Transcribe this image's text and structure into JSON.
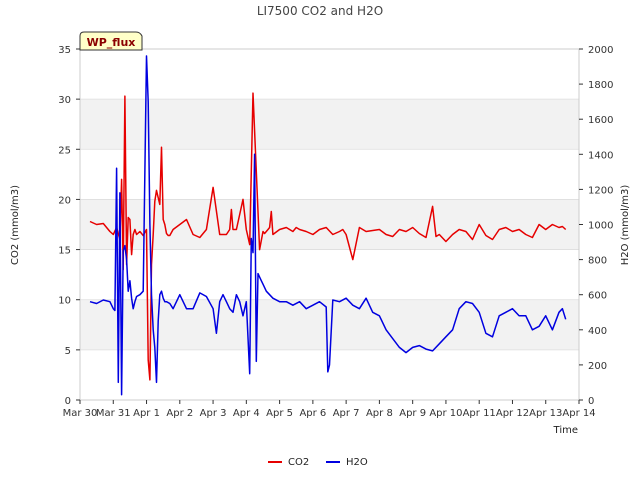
{
  "chart_data": {
    "type": "line",
    "title": "LI7500 CO2 and H2O",
    "xlabel": "Time",
    "ylabel": "CO2 (mmol/m3)",
    "y2label": "H2O (mmol/m3)",
    "site_tag": "WP_flux",
    "xlim": [
      0,
      15
    ],
    "ylim": [
      0,
      35
    ],
    "y2lim": [
      0,
      2000
    ],
    "x_ticks": [
      0,
      1,
      2,
      3,
      4,
      5,
      6,
      7,
      8,
      9,
      10,
      11,
      12,
      13,
      14,
      15
    ],
    "x_tick_labels": [
      "Mar 30",
      "Mar 31",
      "Apr 1",
      "Apr 2",
      "Apr 3",
      "Apr 4",
      "Apr 5",
      "Apr 6",
      "Apr 7",
      "Apr 8",
      "Apr 9",
      "Apr 10",
      "Apr 11",
      "Apr 12",
      "Apr 13",
      "Apr 14"
    ],
    "y_ticks": [
      0,
      5,
      10,
      15,
      20,
      25,
      30,
      35
    ],
    "y2_ticks": [
      0,
      200,
      400,
      600,
      800,
      1000,
      1200,
      1400,
      1600,
      1800,
      2000
    ],
    "bands": [
      [
        5,
        10
      ],
      [
        15,
        20
      ],
      [
        25,
        30
      ]
    ],
    "legend": [
      "CO2",
      "H2O"
    ],
    "colors": {
      "CO2": "#e60000",
      "H2O": "#0000e0",
      "band": "#f2f2f2",
      "grid": "#dddddd"
    },
    "series": [
      {
        "name": "CO2",
        "axis": "left",
        "x": [
          0.3,
          0.5,
          0.7,
          0.9,
          1.0,
          1.1,
          1.2,
          1.25,
          1.3,
          1.35,
          1.4,
          1.45,
          1.5,
          1.55,
          1.6,
          1.65,
          1.7,
          1.8,
          1.9,
          2.0,
          2.05,
          2.1,
          2.15,
          2.2,
          2.25,
          2.3,
          2.4,
          2.45,
          2.5,
          2.55,
          2.6,
          2.65,
          2.7,
          2.8,
          3.0,
          3.2,
          3.4,
          3.6,
          3.8,
          4.0,
          4.2,
          4.4,
          4.5,
          4.55,
          4.6,
          4.7,
          4.9,
          5.0,
          5.1,
          5.2,
          5.4,
          5.5,
          5.55,
          5.6,
          5.65,
          5.7,
          5.75,
          5.8,
          6.0,
          6.2,
          6.4,
          6.5,
          6.6,
          6.8,
          7.0,
          7.2,
          7.4,
          7.6,
          7.8,
          7.9,
          8.0,
          8.2,
          8.4,
          8.6,
          8.8,
          9.0,
          9.2,
          9.4,
          9.6,
          9.8,
          10.0,
          10.2,
          10.4,
          10.6,
          10.7,
          10.8,
          11.0,
          11.2,
          11.4,
          11.6,
          11.8,
          12.0,
          12.2,
          12.4,
          12.6,
          12.8,
          13.0,
          13.2,
          13.4,
          13.6,
          13.8,
          14.0,
          14.2,
          14.4,
          14.5,
          14.6
        ],
        "values": [
          17.8,
          17.5,
          17.6,
          16.8,
          16.5,
          17.2,
          16.0,
          22.0,
          13.0,
          30.3,
          13.5,
          18.2,
          18.0,
          14.5,
          16.5,
          17.0,
          16.5,
          16.8,
          16.4,
          17.0,
          4.0,
          2.0,
          13.5,
          16.5,
          19.8,
          20.9,
          19.5,
          25.2,
          18.0,
          17.5,
          16.6,
          16.4,
          16.4,
          17.0,
          17.5,
          18.0,
          16.5,
          16.2,
          17.0,
          21.2,
          16.5,
          16.5,
          17.0,
          19.0,
          17.0,
          17.0,
          20.0,
          17.0,
          15.5,
          30.6,
          15.0,
          16.8,
          16.6,
          16.8,
          17.0,
          17.2,
          18.8,
          16.5,
          17.0,
          17.2,
          16.8,
          17.2,
          17.0,
          16.8,
          16.5,
          17.0,
          17.2,
          16.5,
          16.8,
          17.0,
          16.5,
          14.0,
          17.2,
          16.8,
          16.9,
          17.0,
          16.5,
          16.3,
          17.0,
          16.8,
          17.2,
          16.6,
          16.2,
          19.3,
          16.3,
          16.5,
          15.8,
          16.5,
          17.0,
          16.8,
          16.0,
          17.5,
          16.4,
          16.0,
          17.0,
          17.2,
          16.8,
          17.0,
          16.5,
          16.2,
          17.5,
          17.0,
          17.5,
          17.2,
          17.3,
          17.0
        ]
      },
      {
        "name": "H2O",
        "axis": "right",
        "x": [
          0.3,
          0.5,
          0.7,
          0.9,
          1.0,
          1.05,
          1.1,
          1.15,
          1.2,
          1.25,
          1.3,
          1.35,
          1.4,
          1.45,
          1.5,
          1.55,
          1.6,
          1.65,
          1.7,
          1.8,
          1.9,
          2.0,
          2.05,
          2.1,
          2.15,
          2.2,
          2.25,
          2.3,
          2.35,
          2.4,
          2.45,
          2.5,
          2.55,
          2.6,
          2.7,
          2.8,
          3.0,
          3.2,
          3.4,
          3.6,
          3.8,
          4.0,
          4.1,
          4.2,
          4.3,
          4.4,
          4.5,
          4.6,
          4.7,
          4.8,
          4.9,
          5.0,
          5.1,
          5.15,
          5.2,
          5.25,
          5.3,
          5.35,
          5.4,
          5.45,
          5.5,
          5.6,
          5.8,
          6.0,
          6.2,
          6.4,
          6.6,
          6.8,
          7.0,
          7.2,
          7.4,
          7.45,
          7.5,
          7.6,
          7.8,
          8.0,
          8.2,
          8.4,
          8.6,
          8.8,
          9.0,
          9.2,
          9.4,
          9.6,
          9.8,
          10.0,
          10.2,
          10.4,
          10.6,
          10.8,
          11.0,
          11.2,
          11.4,
          11.6,
          11.8,
          12.0,
          12.2,
          12.4,
          12.6,
          12.8,
          13.0,
          13.2,
          13.4,
          13.6,
          13.8,
          14.0,
          14.2,
          14.4,
          14.5,
          14.6
        ],
        "values": [
          560,
          550,
          570,
          560,
          520,
          510,
          1320,
          100,
          1180,
          30,
          850,
          880,
          800,
          620,
          680,
          580,
          520,
          560,
          590,
          600,
          620,
          1960,
          1700,
          1000,
          600,
          400,
          300,
          100,
          450,
          600,
          620,
          580,
          560,
          560,
          550,
          520,
          600,
          520,
          520,
          610,
          590,
          520,
          380,
          560,
          600,
          560,
          520,
          500,
          600,
          560,
          480,
          560,
          150,
          920,
          840,
          1400,
          220,
          720,
          700,
          680,
          660,
          620,
          580,
          560,
          560,
          540,
          560,
          520,
          540,
          560,
          530,
          160,
          200,
          570,
          560,
          580,
          540,
          520,
          580,
          500,
          480,
          400,
          350,
          300,
          270,
          300,
          310,
          290,
          280,
          320,
          360,
          400,
          520,
          560,
          550,
          500,
          380,
          360,
          480,
          500,
          520,
          480,
          480,
          400,
          420,
          480,
          400,
          500,
          520,
          460
        ]
      }
    ]
  }
}
